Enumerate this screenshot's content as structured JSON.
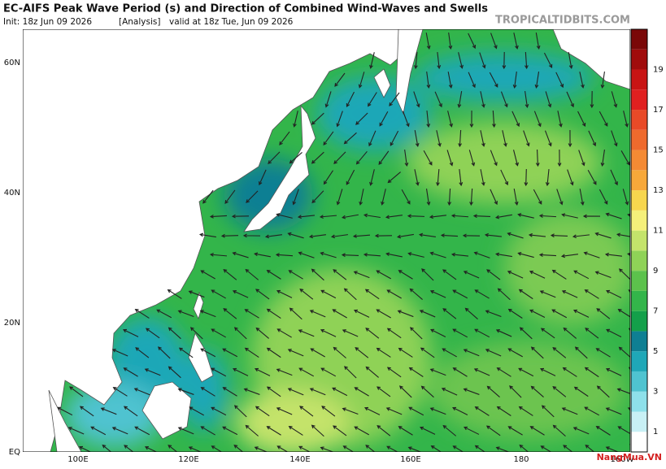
{
  "header": {
    "title": "EC-AIFS Peak Wave Period (s) and Direction of Combined Wind-Waves and Swells",
    "init": "Init: 18z Jun 09 2026",
    "run_type": "[Analysis]",
    "valid": "valid at 18z Tue, Jun 09 2026",
    "source": "TROPICALTIDBITS.COM"
  },
  "map": {
    "lat_labels": [
      "60N",
      "40N",
      "20N",
      "EQ"
    ],
    "lon_labels": [
      "100E",
      "120E",
      "140E",
      "160E",
      "180",
      "160W"
    ]
  },
  "colorbar": {
    "labels": [
      "19",
      "17",
      "15",
      "13",
      "11",
      "9",
      "7",
      "5",
      "3",
      "1"
    ]
  },
  "watermark": "NangMua.VN"
}
